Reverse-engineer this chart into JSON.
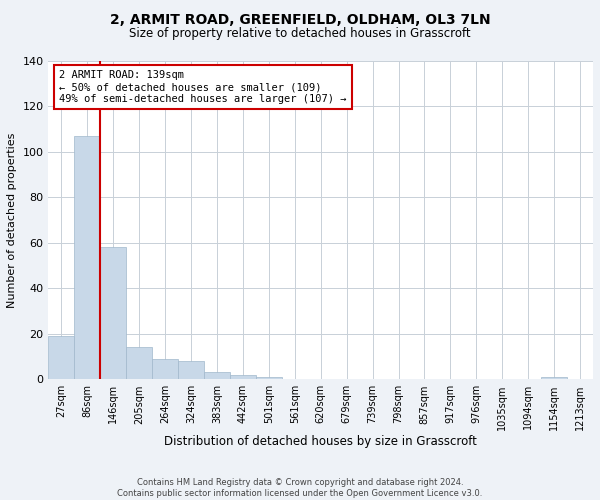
{
  "title": "2, ARMIT ROAD, GREENFIELD, OLDHAM, OL3 7LN",
  "subtitle": "Size of property relative to detached houses in Grasscroft",
  "xlabel": "Distribution of detached houses by size in Grasscroft",
  "ylabel": "Number of detached properties",
  "bin_labels": [
    "27sqm",
    "86sqm",
    "146sqm",
    "205sqm",
    "264sqm",
    "324sqm",
    "383sqm",
    "442sqm",
    "501sqm",
    "561sqm",
    "620sqm",
    "679sqm",
    "739sqm",
    "798sqm",
    "857sqm",
    "917sqm",
    "976sqm",
    "1035sqm",
    "1094sqm",
    "1154sqm",
    "1213sqm"
  ],
  "bar_heights": [
    19,
    107,
    58,
    14,
    9,
    8,
    3,
    2,
    1,
    0,
    0,
    0,
    0,
    0,
    0,
    0,
    0,
    0,
    0,
    1,
    0
  ],
  "bar_color": "#c8d8e8",
  "bar_edgecolor": "#a0b8cc",
  "ylim": [
    0,
    140
  ],
  "yticks": [
    0,
    20,
    40,
    60,
    80,
    100,
    120,
    140
  ],
  "property_line_color": "#cc0000",
  "annotation_text": "2 ARMIT ROAD: 139sqm\n← 50% of detached houses are smaller (109)\n49% of semi-detached houses are larger (107) →",
  "annotation_box_color": "#ffffff",
  "annotation_box_edgecolor": "#cc0000",
  "footer_text": "Contains HM Land Registry data © Crown copyright and database right 2024.\nContains public sector information licensed under the Open Government Licence v3.0.",
  "background_color": "#eef2f7",
  "plot_background_color": "#ffffff",
  "grid_color": "#c8d0d8",
  "title_fontsize": 10,
  "subtitle_fontsize": 8.5,
  "ylabel_fontsize": 8,
  "xlabel_fontsize": 8.5,
  "tick_fontsize": 7,
  "footer_fontsize": 6.0
}
